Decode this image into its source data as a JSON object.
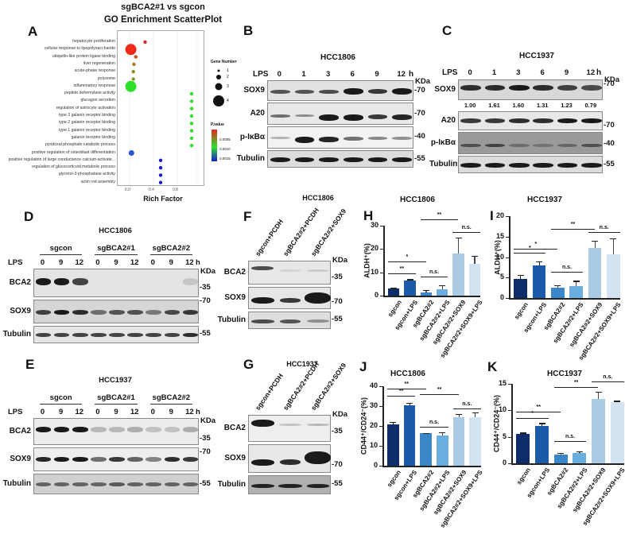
{
  "panelA": {
    "label": "A",
    "title1": "sgBCA2#1 vs sgcon",
    "title2": "GO Enrichment ScatterPlot",
    "xlabel": "Rich Factor",
    "xticks": [
      "0.0",
      "0.4",
      "0.8"
    ],
    "legend_size_title": "Gene Number",
    "legend_sizes": [
      "1",
      "2",
      "3",
      "4"
    ],
    "legend_color_title": "P.value",
    "legend_colors": [
      "0.0005",
      "0.0010",
      "0.0015"
    ]
  },
  "chart_data": [
    {
      "panel": "A",
      "type": "scatter",
      "title": "sgBCA2#1 vs sgcon GO Enrichment ScatterPlot",
      "xlabel": "Rich Factor",
      "xlim": [
        -0.2,
        1.2
      ],
      "points": [
        {
          "term": "hepatocyte proliferation",
          "rich_factor": 0.25,
          "gene_number": 1,
          "pvalue": 0.0002,
          "color": "#e8261e"
        },
        {
          "term": "cellular response to lipopolysaccharide",
          "rich_factor": 0.02,
          "gene_number": 4,
          "pvalue": 0.0001,
          "color": "#f02a1a"
        },
        {
          "term": "ubiquitin-like protein ligase binding",
          "rich_factor": 0.1,
          "gene_number": 1,
          "pvalue": 0.0004,
          "color": "#c4511f"
        },
        {
          "term": "liver regeneration",
          "rich_factor": 0.07,
          "gene_number": 1,
          "pvalue": 0.0005,
          "color": "#b2761d"
        },
        {
          "term": "acute-phase response",
          "rich_factor": 0.06,
          "gene_number": 1,
          "pvalue": 0.0006,
          "color": "#8e8e1e"
        },
        {
          "term": "polysome",
          "rich_factor": 0.06,
          "gene_number": 1,
          "pvalue": 0.0007,
          "color": "#7c9e20"
        },
        {
          "term": "inflammatory response",
          "rich_factor": 0.02,
          "gene_number": 4,
          "pvalue": 0.0009,
          "color": "#2ee02a"
        },
        {
          "term": "peptide deformylase activity",
          "rich_factor": 1.0,
          "gene_number": 1,
          "pvalue": 0.001,
          "color": "#2ee02a"
        },
        {
          "term": "glucagon secretion",
          "rich_factor": 1.0,
          "gene_number": 1,
          "pvalue": 0.001,
          "color": "#2ee02a"
        },
        {
          "term": "regulation of astrocyte activation",
          "rich_factor": 1.0,
          "gene_number": 1,
          "pvalue": 0.001,
          "color": "#2ee02a"
        },
        {
          "term": "type 3 galanin receptor binding",
          "rich_factor": 1.0,
          "gene_number": 1,
          "pvalue": 0.001,
          "color": "#2ee02a"
        },
        {
          "term": "type 2 galanin receptor binding",
          "rich_factor": 1.0,
          "gene_number": 1,
          "pvalue": 0.001,
          "color": "#2ee02a"
        },
        {
          "term": "type 1 galanin receptor binding",
          "rich_factor": 1.0,
          "gene_number": 1,
          "pvalue": 0.001,
          "color": "#2ee02a"
        },
        {
          "term": "galanin receptor binding",
          "rich_factor": 1.0,
          "gene_number": 1,
          "pvalue": 0.001,
          "color": "#2ee02a"
        },
        {
          "term": "pyridoxal phosphate catabolic process",
          "rich_factor": 1.0,
          "gene_number": 1,
          "pvalue": 0.001,
          "color": "#2ee02a"
        },
        {
          "term": "positive regulation of osteoblast differentiation",
          "rich_factor": 0.03,
          "gene_number": 2,
          "pvalue": 0.0014,
          "color": "#2a55d0"
        },
        {
          "term": "positive regulation of large conductance calcium-activate...",
          "rich_factor": 0.5,
          "gene_number": 1,
          "pvalue": 0.0016,
          "color": "#1a1ad0"
        },
        {
          "term": "regulation of glucocorticoid metabolic process",
          "rich_factor": 0.5,
          "gene_number": 1,
          "pvalue": 0.0016,
          "color": "#1a1ad0"
        },
        {
          "term": "glycerol-3-phosphatase activity",
          "rich_factor": 0.5,
          "gene_number": 1,
          "pvalue": 0.0016,
          "color": "#1a1ad0"
        },
        {
          "term": "actin rod assembly",
          "rich_factor": 0.5,
          "gene_number": 1,
          "pvalue": 0.0016,
          "color": "#1a1ad0"
        }
      ],
      "legend": {
        "size_title": "Gene Number",
        "sizes": [
          1,
          2,
          3,
          4
        ],
        "color_title": "P.value",
        "color_ticks": [
          0.0005,
          0.001,
          0.0015
        ]
      }
    },
    {
      "panel": "H",
      "type": "bar",
      "title": "HCC1806",
      "ylabel": "ALDH+(%)",
      "ylim": [
        0,
        30
      ],
      "categories": [
        "sgcon",
        "sgcon+LPS",
        "sgBCA2#2",
        "sgBCA2#2+LPS",
        "sgBCA2#2+SOX9",
        "sgBCA2#2+SOX9+LPS"
      ],
      "values": [
        3,
        6.5,
        1.5,
        2.8,
        18,
        13.5
      ],
      "errors": [
        0.3,
        0.5,
        0.8,
        1.7,
        7,
        3.5
      ],
      "yticks": [
        0,
        10,
        20,
        30
      ],
      "significance": [
        {
          "pair": [
            0,
            1
          ],
          "label": "**"
        },
        {
          "pair": [
            0,
            2
          ],
          "label": "*"
        },
        {
          "pair": [
            2,
            3
          ],
          "label": "n.s."
        },
        {
          "pair": [
            2,
            4
          ],
          "label": "**"
        },
        {
          "pair": [
            4,
            5
          ],
          "label": "n.s."
        }
      ]
    },
    {
      "panel": "I",
      "type": "bar",
      "title": "HCC1937",
      "ylabel": "ALDH+(%)",
      "ylim": [
        0,
        20
      ],
      "categories": [
        "sgcon",
        "sgcon+LPS",
        "sgBCA2#2",
        "sgBCA2#2+LPS",
        "sgBCA2#2+SOX9",
        "sgBCA2#2+SOX9+LPS"
      ],
      "values": [
        4.6,
        8,
        2.6,
        3,
        12.2,
        10.6
      ],
      "errors": [
        1,
        1,
        0.6,
        1.2,
        1.8,
        4
      ],
      "yticks": [
        0,
        5,
        10,
        15,
        20
      ],
      "significance": [
        {
          "pair": [
            0,
            1
          ],
          "label": "*"
        },
        {
          "pair": [
            0,
            2
          ],
          "label": "*"
        },
        {
          "pair": [
            2,
            3
          ],
          "label": "n.s."
        },
        {
          "pair": [
            2,
            4
          ],
          "label": "**"
        },
        {
          "pair": [
            4,
            5
          ],
          "label": "n.s."
        }
      ]
    },
    {
      "panel": "J",
      "type": "bar",
      "title": "HCC1806",
      "ylabel": "CD44+/CD24-(%)",
      "ylim": [
        0,
        40
      ],
      "categories": [
        "sgcon",
        "sgcon+LPS",
        "sgBCA2#2",
        "sgBCA2#2+LPS",
        "sgBCA2#2+SOX9",
        "sgBCA2#2+SOX9+LPS"
      ],
      "values": [
        21,
        30.5,
        16.3,
        15.3,
        24.5,
        24.5
      ],
      "errors": [
        1,
        1,
        0.3,
        1.5,
        1.5,
        2.3
      ],
      "yticks": [
        0,
        10,
        20,
        30,
        40
      ],
      "significance": [
        {
          "pair": [
            0,
            1
          ],
          "label": "**"
        },
        {
          "pair": [
            0,
            2
          ],
          "label": "**"
        },
        {
          "pair": [
            2,
            3
          ],
          "label": "n.s."
        },
        {
          "pair": [
            2,
            4
          ],
          "label": "**"
        },
        {
          "pair": [
            4,
            5
          ],
          "label": "n.s."
        }
      ]
    },
    {
      "panel": "K",
      "type": "bar",
      "title": "HCC1937",
      "ylabel": "CD44+/CD24-(%)",
      "ylim": [
        0,
        15
      ],
      "categories": [
        "sgcon",
        "sgcon+LPS",
        "sgBCA2#2",
        "sgBCA2#2+LPS",
        "sgBCA2#2+SOX9",
        "sgBCA2#2+SOX9+LPS"
      ],
      "values": [
        5.5,
        7.1,
        1.6,
        1.9,
        12.2,
        11.6
      ],
      "errors": [
        0.3,
        0.5,
        0.4,
        0.4,
        1.3,
        0.2
      ],
      "yticks": [
        0,
        5,
        10,
        15
      ],
      "significance": [
        {
          "pair": [
            0,
            1
          ],
          "label": "*"
        },
        {
          "pair": [
            0,
            2
          ],
          "label": "**"
        },
        {
          "pair": [
            2,
            3
          ],
          "label": "n.s."
        },
        {
          "pair": [
            2,
            4
          ],
          "label": "**"
        },
        {
          "pair": [
            4,
            5
          ],
          "label": "n.s."
        }
      ]
    }
  ],
  "panelB": {
    "label": "B",
    "cell": "HCC1806",
    "lps": "LPS",
    "times": [
      "0",
      "1",
      "3",
      "6",
      "9",
      "12"
    ],
    "unit": "h",
    "kda": "KDa",
    "rows": [
      {
        "name": "SOX9",
        "marker": "-70"
      },
      {
        "name": "A20",
        "marker": "-70"
      },
      {
        "name": "p-IκBα",
        "marker": "-40"
      },
      {
        "name": "Tubulin",
        "marker": "-55"
      }
    ]
  },
  "panelC": {
    "label": "C",
    "cell": "HCC1937",
    "lps": "LPS",
    "times": [
      "0",
      "1",
      "3",
      "6",
      "9",
      "12"
    ],
    "unit": "h",
    "kda": "KDa",
    "quant": [
      "1.00",
      "1.61",
      "1.60",
      "1.31",
      "1.23",
      "0.79"
    ],
    "rows": [
      {
        "name": "SOX9",
        "marker": "-70"
      },
      {
        "name": "A20",
        "marker": "-70"
      },
      {
        "name": "p-IκBα",
        "marker": "-40"
      },
      {
        "name": "Tubulin",
        "marker": "-55"
      }
    ]
  },
  "panelD": {
    "label": "D",
    "cell": "HCC1806",
    "lps": "LPS",
    "groups": [
      "sgcon",
      "sgBCA2#1",
      "sgBCA2#2"
    ],
    "times": [
      "0",
      "9",
      "12",
      "0",
      "9",
      "12",
      "0",
      "9",
      "12"
    ],
    "unit": "h",
    "kda": "KDa",
    "rows": [
      {
        "name": "BCA2",
        "marker": "-35"
      },
      {
        "name": "SOX9",
        "marker": "-70"
      },
      {
        "name": "Tubulin",
        "marker": "-55"
      }
    ]
  },
  "panelE": {
    "label": "E",
    "cell": "HCC1937",
    "lps": "LPS",
    "groups": [
      "sgcon",
      "sgBCA2#1",
      "sgBCA2#2"
    ],
    "times": [
      "0",
      "9",
      "12",
      "0",
      "9",
      "12",
      "0",
      "9",
      "12"
    ],
    "unit": "h",
    "kda": "KDa",
    "rows": [
      {
        "name": "BCA2",
        "marker": "-35"
      },
      {
        "name": "SOX9",
        "marker": "-70"
      },
      {
        "name": "Tubulin",
        "marker": "-55"
      }
    ]
  },
  "panelF": {
    "label": "F",
    "cell": "HCC1806",
    "kda": "KDa",
    "lanes": [
      "sgcon+PCDH",
      "sgBCA2#2+PCDH",
      "sgBCA2#2+SOX9"
    ],
    "rows": [
      {
        "name": "BCA2",
        "marker": "-35"
      },
      {
        "name": "SOX9",
        "marker": "-70"
      },
      {
        "name": "Tubulin",
        "marker": "-55"
      }
    ]
  },
  "panelG": {
    "label": "G",
    "cell": "HCC1937",
    "kda": "KDa",
    "lanes": [
      "sgcon+PCDH",
      "sgBCA2#2+PCDH",
      "sgBCA2#2+SOX9"
    ],
    "rows": [
      {
        "name": "BCA2",
        "marker": "-35"
      },
      {
        "name": "SOX9",
        "marker": "-70"
      },
      {
        "name": "Tubulin",
        "marker": "-55"
      }
    ]
  },
  "panelH": {
    "label": "H",
    "title": "HCC1806",
    "ylabel": "ALDH⁺(%)"
  },
  "panelI": {
    "label": "I",
    "title": "HCC1937",
    "ylabel": "ALDH⁺(%)"
  },
  "panelJ": {
    "label": "J",
    "title": "HCC1806",
    "ylabel": "CD44⁺/CD24⁻(%)"
  },
  "panelK": {
    "label": "K",
    "title": "HCC1937",
    "ylabel": "CD44⁺/CD24⁻(%)"
  },
  "bar_colors": [
    "#0d2d6b",
    "#1a5aa8",
    "#3a86c8",
    "#6aaee0",
    "#a9cbe6",
    "#d3e3f2"
  ]
}
